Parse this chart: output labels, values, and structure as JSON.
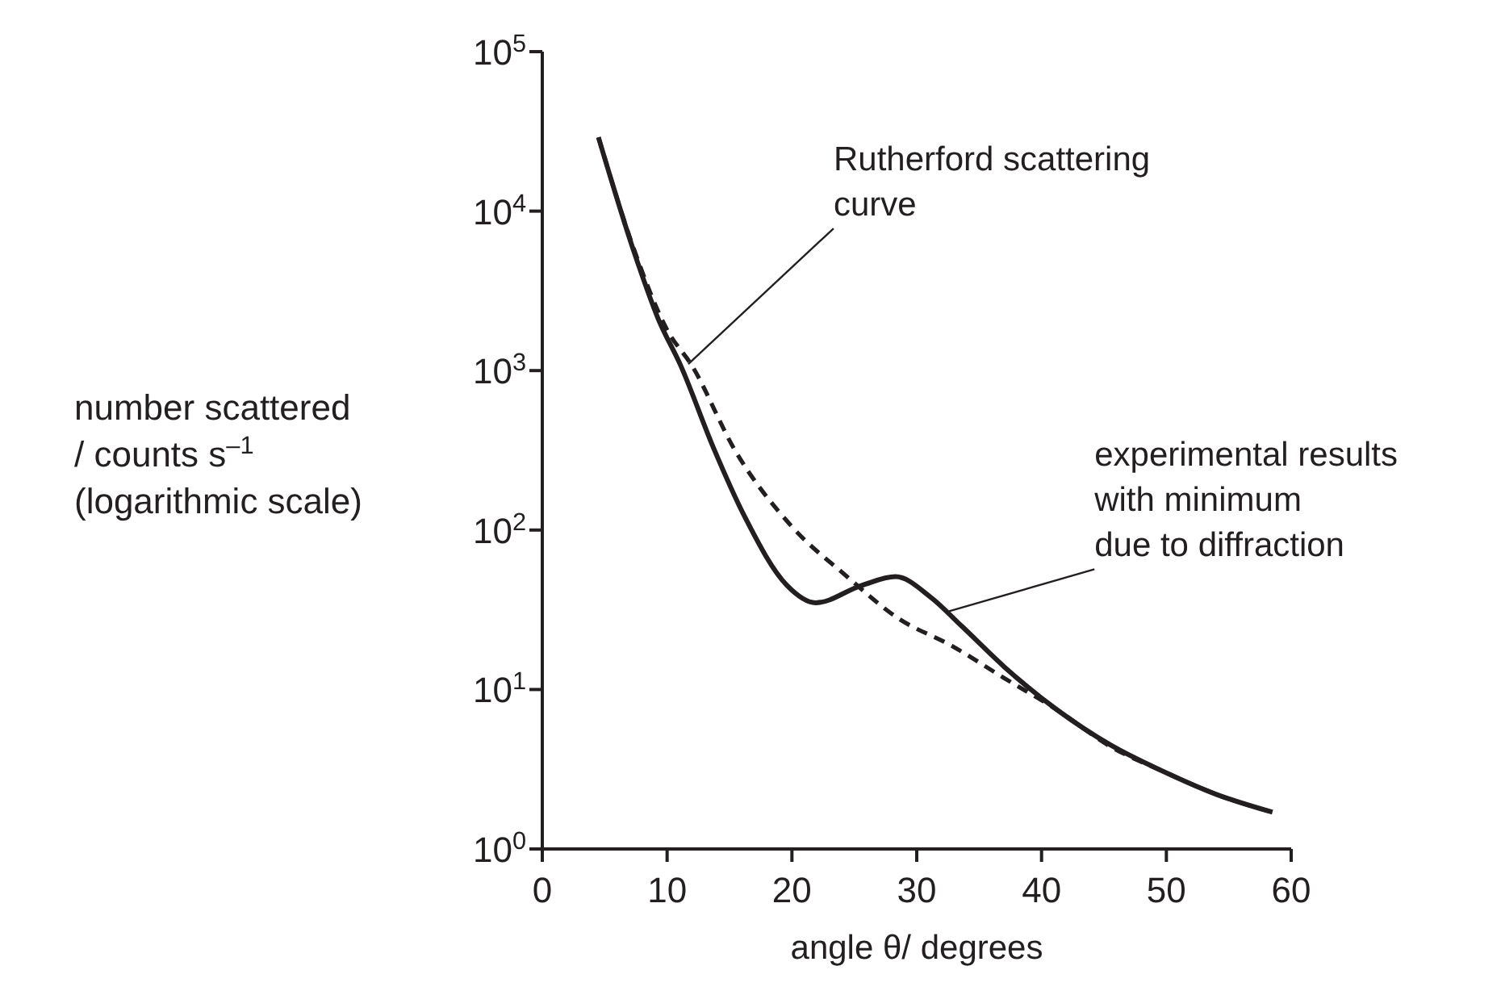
{
  "chart_data": {
    "type": "line",
    "xlabel": "angle θ/ degrees",
    "ylabel": "number scattered\n/ counts s$^{–1}$\n(logarithmic scale)",
    "log": "y",
    "grid": false,
    "marker": "none",
    "xlim": [
      0,
      60
    ],
    "xticks": [
      0,
      10,
      20,
      30,
      40,
      50,
      60
    ],
    "ylim": [
      1,
      100000
    ],
    "yticks": [
      {
        "value": 1,
        "label": "10$^{0}$"
      },
      {
        "value": 10,
        "label": "10$^{1}$"
      },
      {
        "value": 100,
        "label": "10$^{2}$"
      },
      {
        "value": 1000,
        "label": "10$^{3}$"
      },
      {
        "value": 10000,
        "label": "10$^{4}$"
      },
      {
        "value": 100000,
        "label": "10$^{5}$"
      }
    ],
    "series": [
      {
        "color": "#231f20",
        "line_style": "dashed",
        "x": [
          4.5,
          7.3,
          10,
          12,
          15.4,
          20,
          24.3,
          28.5,
          32.8,
          37,
          41.3,
          45.5,
          49.8,
          54,
          58.5
        ],
        "values": [
          29000,
          5900,
          1800,
          1070,
          320,
          105,
          52,
          28,
          18.8,
          11.8,
          7.4,
          4.4,
          3.05,
          2.2,
          1.7
        ]
      },
      {
        "color": "#231f20",
        "line_style": "solid",
        "x": [
          4.5,
          7.3,
          9.3,
          11.1,
          13.7,
          16.2,
          19.6,
          21.9,
          25.6,
          28.3,
          31.1,
          33.6,
          37,
          41.3,
          45.5,
          49.8,
          54,
          58.5
        ],
        "values": [
          29000,
          5700,
          2100,
          1070,
          330,
          122,
          45,
          35,
          45,
          51,
          38,
          25,
          13.9,
          7.4,
          4.5,
          3.05,
          2.2,
          1.7
        ]
      }
    ],
    "annotations": [
      {
        "text": "Rutherford scattering\ncurve",
        "x": 11.7,
        "y": 1100
      },
      {
        "text": "experimental results\nwith minimum\ndue to diffraction",
        "x": 32.6,
        "y": 31
      }
    ]
  }
}
